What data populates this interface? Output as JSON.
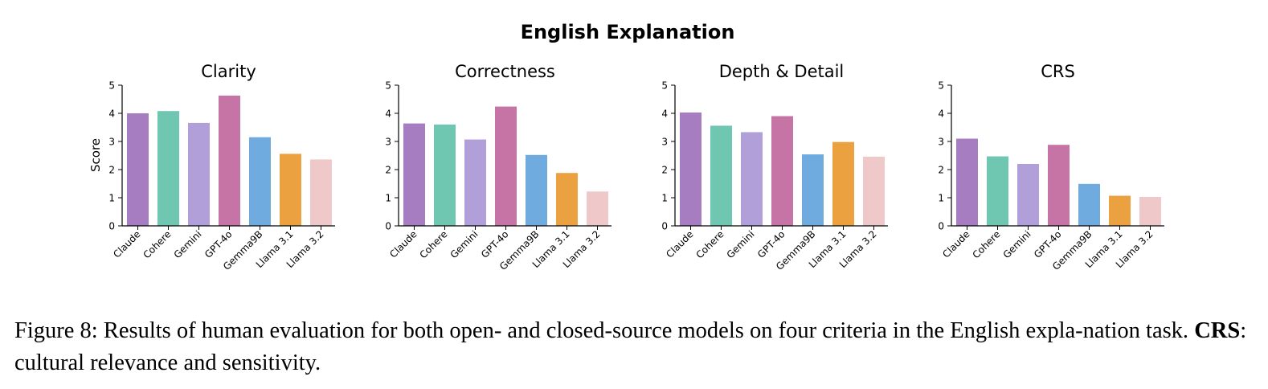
{
  "figure": {
    "title": "English Explanation",
    "ylabel": "Score"
  },
  "chart_data": [
    {
      "type": "bar",
      "title": "Clarity",
      "ylabel": "Score",
      "categories": [
        "Claude",
        "Cohere",
        "Gemini",
        "GPT-4o",
        "Gemma9B",
        "Llama 3.1",
        "Llama 3.2"
      ],
      "values": [
        4.0,
        4.08,
        3.66,
        4.63,
        3.15,
        2.56,
        2.36
      ],
      "yticks": [
        "0",
        "1",
        "2",
        "3",
        "4",
        "5"
      ],
      "ylim": [
        0,
        5
      ],
      "colors": [
        "#a77dc2",
        "#6fc6b1",
        "#b19fda",
        "#c673a5",
        "#6fabdf",
        "#eba140",
        "#efc8c9"
      ]
    },
    {
      "type": "bar",
      "title": "Correctness",
      "categories": [
        "Claude",
        "Cohere",
        "Gemini",
        "GPT-4o",
        "Gemma9B",
        "Llama 3.1",
        "Llama 3.2"
      ],
      "values": [
        3.64,
        3.6,
        3.07,
        4.24,
        2.52,
        1.88,
        1.22
      ],
      "yticks": [
        "0",
        "1",
        "2",
        "3",
        "4",
        "5"
      ],
      "ylim": [
        0,
        5
      ],
      "colors": [
        "#a77dc2",
        "#6fc6b1",
        "#b19fda",
        "#c673a5",
        "#6fabdf",
        "#eba140",
        "#efc8c9"
      ]
    },
    {
      "type": "bar",
      "title": "Depth & Detail",
      "categories": [
        "Claude",
        "Cohere",
        "Gemini",
        "GPT-4o",
        "Gemma9B",
        "Llama 3.1",
        "Llama 3.2"
      ],
      "values": [
        4.03,
        3.56,
        3.33,
        3.9,
        2.54,
        2.98,
        2.46
      ],
      "yticks": [
        "0",
        "1",
        "2",
        "3",
        "4",
        "5"
      ],
      "ylim": [
        0,
        5
      ],
      "colors": [
        "#a77dc2",
        "#6fc6b1",
        "#b19fda",
        "#c673a5",
        "#6fabdf",
        "#eba140",
        "#efc8c9"
      ]
    },
    {
      "type": "bar",
      "title": "CRS",
      "categories": [
        "Claude",
        "Cohere",
        "Gemini",
        "GPT-4o",
        "Gemma9B",
        "Llama 3.1",
        "Llama 3.2"
      ],
      "values": [
        3.1,
        2.47,
        2.2,
        2.88,
        1.49,
        1.07,
        1.03
      ],
      "yticks": [
        "0",
        "1",
        "2",
        "3",
        "4",
        "5"
      ],
      "ylim": [
        0,
        5
      ],
      "colors": [
        "#a77dc2",
        "#6fc6b1",
        "#b19fda",
        "#c673a5",
        "#6fabdf",
        "#eba140",
        "#efc8c9"
      ]
    }
  ],
  "caption": {
    "prefix": "Figure 8: Results of human evaluation for both open- and closed-source models on four criteria in the English expla-nation task. ",
    "bold": "CRS",
    "suffix": ": cultural relevance and sensitivity."
  }
}
